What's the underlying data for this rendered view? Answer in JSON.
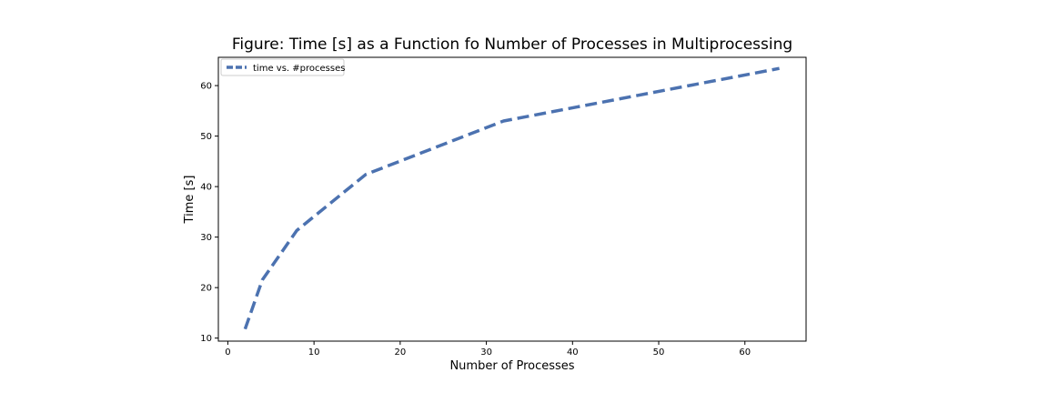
{
  "chart_data": {
    "type": "line",
    "title": "Figure: Time [s] as a Function fo Number of Processes in Multiprocessing",
    "xlabel": "Number of Processes",
    "ylabel": "Time [s]",
    "xlim": [
      -1.1,
      67.1
    ],
    "ylim": [
      9.4,
      65.6
    ],
    "xticks": [
      0,
      10,
      20,
      30,
      40,
      50,
      60
    ],
    "yticks": [
      10,
      20,
      30,
      40,
      50,
      60
    ],
    "grid": false,
    "legend_position": "upper-left",
    "series": [
      {
        "name": "time vs. #processes",
        "color": "#4c72b0",
        "line_style": "dashed",
        "x": [
          2,
          4,
          8,
          16,
          32,
          64
        ],
        "y": [
          11.8,
          21.5,
          31.3,
          42.4,
          53.0,
          63.4
        ]
      }
    ]
  }
}
